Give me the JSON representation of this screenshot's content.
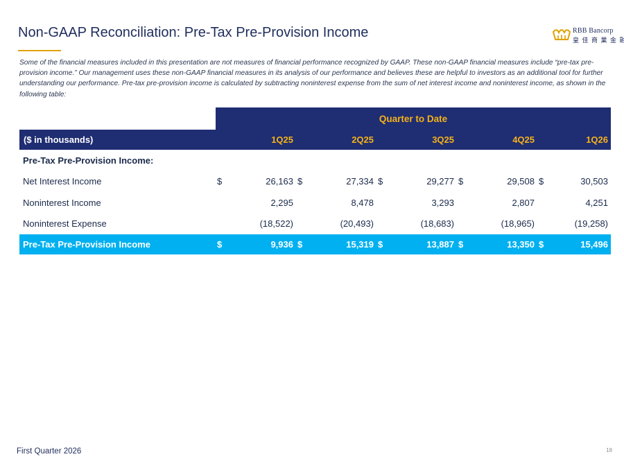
{
  "title": "Non-GAAP Reconciliation: Pre-Tax Pre-Provision Income",
  "logo": {
    "name": "RBB Bancorp",
    "subtitle": "皇 佳 商 業 金 融"
  },
  "intro": "Some of the financial measures included in this presentation are not measures of financial performance recognized by GAAP. These non-GAAP financial measures include “pre-tax pre-provision income.” Our management uses these non-GAAP financial measures in its analysis of our performance and believes these are helpful to investors as an additional tool for further understanding our performance. Pre-tax pre-provision income is calculated by subtracting noninterest expense from the sum of net interest income and noninterest income, as shown in the following table:",
  "table": {
    "group_header": "Quarter to Date",
    "units_label": "($ in thousands)",
    "periods": [
      "1Q25",
      "2Q25",
      "3Q25",
      "4Q25",
      "1Q26"
    ],
    "section_label": "Pre-Tax Pre-Provision Income:",
    "rows": [
      {
        "label": "Net Interest Income",
        "currency": [
          "$",
          "$",
          "$",
          "$",
          "$"
        ],
        "values": [
          "26,163",
          "27,334",
          "29,277",
          "29,508",
          "30,503"
        ]
      },
      {
        "label": "Noninterest Income",
        "currency": [
          "",
          "",
          "",
          "",
          ""
        ],
        "values": [
          "2,295",
          "8,478",
          "3,293",
          "2,807",
          "4,251"
        ]
      },
      {
        "label": "Noninterest Expense",
        "currency": [
          "",
          "",
          "",
          "",
          ""
        ],
        "values": [
          "(18,522)",
          "(20,493)",
          "(18,683)",
          "(18,965)",
          "(19,258)"
        ]
      }
    ],
    "total": {
      "label": "Pre-Tax Pre-Provision Income",
      "currency": [
        "$",
        "$",
        "$",
        "$",
        "$"
      ],
      "values": [
        "9,936",
        "15,319",
        "13,887",
        "13,350",
        "15,496"
      ]
    }
  },
  "footer": "First Quarter 2026",
  "page_number": "18",
  "colors": {
    "navy": "#1f2d72",
    "gold": "#f5b21a",
    "cyan": "#00b0f0",
    "title": "#1f2d5c"
  }
}
